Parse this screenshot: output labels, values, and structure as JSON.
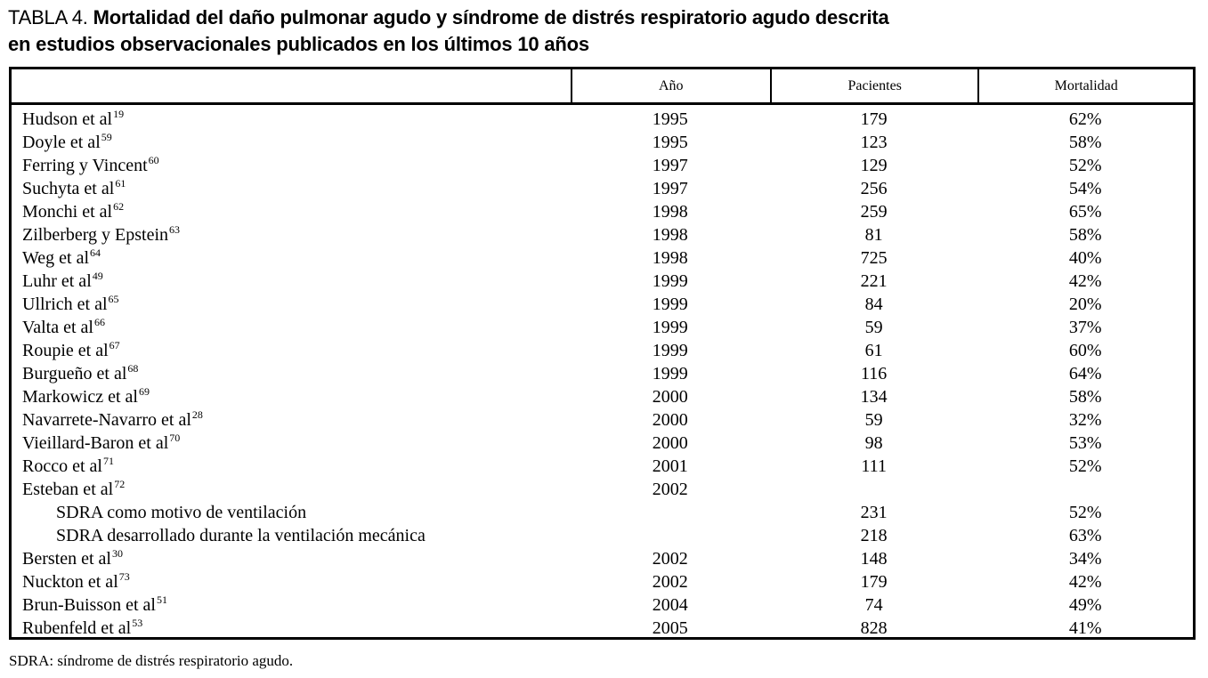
{
  "title": {
    "label": "TABLA 4.",
    "line1": "Mortalidad del daño pulmonar agudo y síndrome de distrés respiratorio agudo descrita",
    "line2": "en estudios observacionales publicados en los últimos 10 años"
  },
  "table": {
    "columns": [
      "",
      "Año",
      "Pacientes",
      "Mortalidad"
    ],
    "rows": [
      {
        "study": "Hudson et al",
        "ref": "19",
        "indent": false,
        "year": "1995",
        "patients": "179",
        "mortality": "62%"
      },
      {
        "study": "Doyle et al",
        "ref": "59",
        "indent": false,
        "year": "1995",
        "patients": "123",
        "mortality": "58%"
      },
      {
        "study": "Ferring y Vincent",
        "ref": "60",
        "indent": false,
        "year": "1997",
        "patients": "129",
        "mortality": "52%"
      },
      {
        "study": "Suchyta et al",
        "ref": "61",
        "indent": false,
        "year": "1997",
        "patients": "256",
        "mortality": "54%"
      },
      {
        "study": "Monchi et al",
        "ref": "62",
        "indent": false,
        "year": "1998",
        "patients": "259",
        "mortality": "65%"
      },
      {
        "study": "Zilberberg y Epstein",
        "ref": "63",
        "indent": false,
        "year": "1998",
        "patients": "81",
        "mortality": "58%"
      },
      {
        "study": "Weg et al",
        "ref": "64",
        "indent": false,
        "year": "1998",
        "patients": "725",
        "mortality": "40%"
      },
      {
        "study": "Luhr et al",
        "ref": "49",
        "indent": false,
        "year": "1999",
        "patients": "221",
        "mortality": "42%"
      },
      {
        "study": "Ullrich et al",
        "ref": "65",
        "indent": false,
        "year": "1999",
        "patients": "84",
        "mortality": "20%"
      },
      {
        "study": "Valta et al",
        "ref": "66",
        "indent": false,
        "year": "1999",
        "patients": "59",
        "mortality": "37%"
      },
      {
        "study": "Roupie et al",
        "ref": "67",
        "indent": false,
        "year": "1999",
        "patients": "61",
        "mortality": "60%"
      },
      {
        "study": "Burgueño et al",
        "ref": "68",
        "indent": false,
        "year": "1999",
        "patients": "116",
        "mortality": "64%"
      },
      {
        "study": "Markowicz et al",
        "ref": "69",
        "indent": false,
        "year": "2000",
        "patients": "134",
        "mortality": "58%"
      },
      {
        "study": "Navarrete-Navarro et al",
        "ref": "28",
        "indent": false,
        "year": "2000",
        "patients": "59",
        "mortality": "32%"
      },
      {
        "study": "Vieillard-Baron et al",
        "ref": "70",
        "indent": false,
        "year": "2000",
        "patients": "98",
        "mortality": "53%"
      },
      {
        "study": "Rocco et al",
        "ref": "71",
        "indent": false,
        "year": "2001",
        "patients": "111",
        "mortality": "52%"
      },
      {
        "study": "Esteban et al",
        "ref": "72",
        "indent": false,
        "year": "2002",
        "patients": "",
        "mortality": ""
      },
      {
        "study": "SDRA como motivo de ventilación",
        "ref": "",
        "indent": true,
        "year": "",
        "patients": "231",
        "mortality": "52%"
      },
      {
        "study": "SDRA desarrollado durante la ventilación mecánica",
        "ref": "",
        "indent": true,
        "year": "",
        "patients": "218",
        "mortality": "63%"
      },
      {
        "study": "Bersten et al",
        "ref": "30",
        "indent": false,
        "year": "2002",
        "patients": "148",
        "mortality": "34%"
      },
      {
        "study": "Nuckton et al",
        "ref": "73",
        "indent": false,
        "year": "2002",
        "patients": "179",
        "mortality": "42%"
      },
      {
        "study": "Brun-Buisson et al",
        "ref": "51",
        "indent": false,
        "year": "2004",
        "patients": "74",
        "mortality": "49%"
      },
      {
        "study": "Rubenfeld et al",
        "ref": "53",
        "indent": false,
        "year": "2005",
        "patients": "828",
        "mortality": "41%"
      }
    ]
  },
  "footnote": "SDRA: síndrome de distrés respiratorio agudo."
}
